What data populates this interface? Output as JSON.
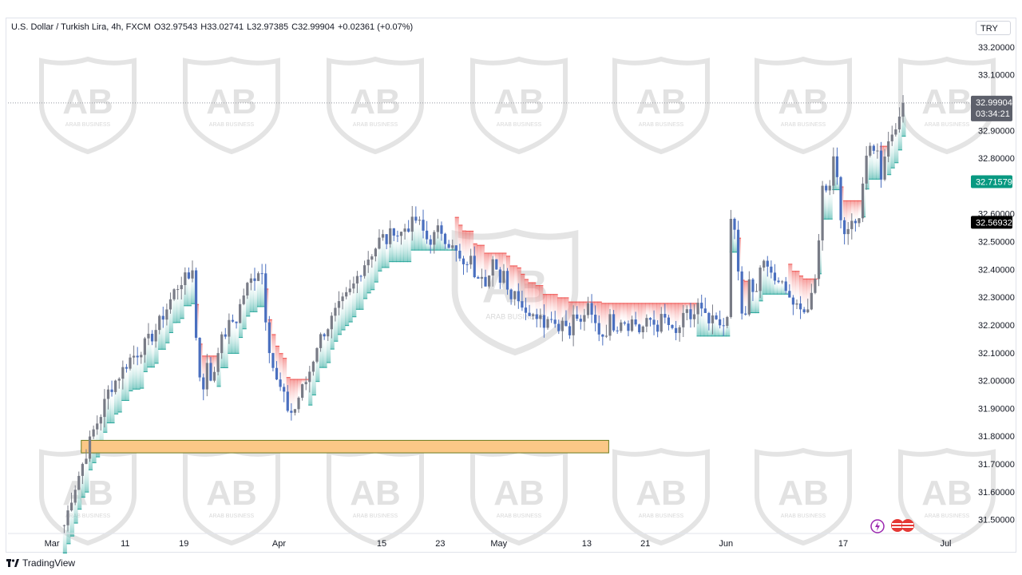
{
  "header": {
    "symbol": "U.S. Dollar / Turkish Lira, 4h, FXCM",
    "open_label": "O",
    "open": "32.97543",
    "high_label": "H",
    "high": "33.02741",
    "low_label": "L",
    "low": "32.97385",
    "close_label": "C",
    "close": "32.99904",
    "change": "+0.02361 (+0.07%)"
  },
  "currency": "TRY",
  "footer": {
    "brand": "TradingView"
  },
  "watermark": {
    "text": "ARAB BUSINESS"
  },
  "price_tags": {
    "last_price": "32.99904",
    "countdown": "03:34:21",
    "green_level": "32.71579",
    "black_level": "32.56932"
  },
  "colors": {
    "candle": "#4a6fbf",
    "candle_gray": "#787b86",
    "support_zone": "#fbc887",
    "support_border": "#6b7a1e",
    "trail_bull": "#26a69a",
    "trail_bear": "#ef5350",
    "tag_green": "#089981",
    "tag_black": "#000000",
    "tag_gray": "#5d606b"
  },
  "chart_data": {
    "type": "candlestick",
    "title": "U.S. Dollar / Turkish Lira, 4h, FXCM",
    "ylim": [
      31.45,
      33.24
    ],
    "y_ticks": [
      "33.20000",
      "33.10000",
      "32.90000",
      "32.80000",
      "32.60000",
      "32.50000",
      "32.40000",
      "32.30000",
      "32.20000",
      "32.10000",
      "32.00000",
      "31.90000",
      "31.80000",
      "31.70000",
      "31.60000",
      "31.50000"
    ],
    "x_ticks": [
      "Mar",
      "11",
      "19",
      "Apr",
      "15",
      "23",
      "May",
      "13",
      "21",
      "Jun",
      "17",
      "Jul"
    ],
    "x_tick_day": [
      0,
      10,
      18,
      31,
      45,
      53,
      61,
      73,
      81,
      92,
      108,
      122
    ],
    "x_range_days": [
      -6,
      125
    ],
    "support_zone": {
      "from_day": 4,
      "to_day": 76,
      "low": 31.74,
      "high": 31.785
    },
    "close_path": [
      {
        "d": 1.5,
        "v": 31.48
      },
      {
        "d": 2.5,
        "v": 31.58
      },
      {
        "d": 3.5,
        "v": 31.66
      },
      {
        "d": 4.5,
        "v": 31.74
      },
      {
        "d": 5.5,
        "v": 31.82
      },
      {
        "d": 6.5,
        "v": 31.88
      },
      {
        "d": 7.5,
        "v": 31.96
      },
      {
        "d": 8.5,
        "v": 32.0
      },
      {
        "d": 9.5,
        "v": 32.04
      },
      {
        "d": 10.5,
        "v": 32.08
      },
      {
        "d": 11.5,
        "v": 32.1
      },
      {
        "d": 12.5,
        "v": 32.13
      },
      {
        "d": 13.5,
        "v": 32.16
      },
      {
        "d": 14.5,
        "v": 32.21
      },
      {
        "d": 15.5,
        "v": 32.26
      },
      {
        "d": 16.5,
        "v": 32.32
      },
      {
        "d": 17.5,
        "v": 32.36
      },
      {
        "d": 18.5,
        "v": 32.37
      },
      {
        "d": 19.0,
        "v": 32.41
      },
      {
        "d": 19.6,
        "v": 32.1
      },
      {
        "d": 20.3,
        "v": 31.96
      },
      {
        "d": 21.0,
        "v": 32.05
      },
      {
        "d": 21.7,
        "v": 31.99
      },
      {
        "d": 22.5,
        "v": 32.12
      },
      {
        "d": 23.3,
        "v": 32.16
      },
      {
        "d": 24.2,
        "v": 32.21
      },
      {
        "d": 25.0,
        "v": 32.22
      },
      {
        "d": 25.8,
        "v": 32.3
      },
      {
        "d": 26.7,
        "v": 32.35
      },
      {
        "d": 27.6,
        "v": 32.38
      },
      {
        "d": 28.4,
        "v": 32.42
      },
      {
        "d": 29.0,
        "v": 32.23
      },
      {
        "d": 29.6,
        "v": 32.1
      },
      {
        "d": 30.4,
        "v": 32.0
      },
      {
        "d": 31.2,
        "v": 31.96
      },
      {
        "d": 32.0,
        "v": 31.9
      },
      {
        "d": 32.8,
        "v": 31.88
      },
      {
        "d": 33.6,
        "v": 31.95
      },
      {
        "d": 34.4,
        "v": 31.99
      },
      {
        "d": 35.2,
        "v": 32.05
      },
      {
        "d": 36.0,
        "v": 32.13
      },
      {
        "d": 36.8,
        "v": 32.17
      },
      {
        "d": 37.6,
        "v": 32.2
      },
      {
        "d": 38.4,
        "v": 32.24
      },
      {
        "d": 39.2,
        "v": 32.27
      },
      {
        "d": 40.0,
        "v": 32.3
      },
      {
        "d": 40.8,
        "v": 32.33
      },
      {
        "d": 41.6,
        "v": 32.38
      },
      {
        "d": 42.4,
        "v": 32.42
      },
      {
        "d": 43.2,
        "v": 32.45
      },
      {
        "d": 44.0,
        "v": 32.48
      },
      {
        "d": 44.8,
        "v": 32.52
      },
      {
        "d": 45.6,
        "v": 32.5
      },
      {
        "d": 46.4,
        "v": 32.55
      },
      {
        "d": 47.2,
        "v": 32.52
      },
      {
        "d": 48.0,
        "v": 32.55
      },
      {
        "d": 48.8,
        "v": 32.56
      },
      {
        "d": 49.6,
        "v": 32.58
      },
      {
        "d": 50.4,
        "v": 32.54
      },
      {
        "d": 51.2,
        "v": 32.5
      },
      {
        "d": 52.0,
        "v": 32.52
      },
      {
        "d": 52.8,
        "v": 32.55
      },
      {
        "d": 53.6,
        "v": 32.51
      },
      {
        "d": 54.4,
        "v": 32.48
      },
      {
        "d": 55.2,
        "v": 32.45
      },
      {
        "d": 56.0,
        "v": 32.4
      },
      {
        "d": 56.8,
        "v": 32.45
      },
      {
        "d": 57.6,
        "v": 32.38
      },
      {
        "d": 58.4,
        "v": 32.4
      },
      {
        "d": 59.2,
        "v": 32.35
      },
      {
        "d": 60.0,
        "v": 32.42
      },
      {
        "d": 60.8,
        "v": 32.36
      },
      {
        "d": 61.6,
        "v": 32.4
      },
      {
        "d": 62.4,
        "v": 32.3
      },
      {
        "d": 63.2,
        "v": 32.33
      },
      {
        "d": 64.0,
        "v": 32.27
      },
      {
        "d": 64.8,
        "v": 32.25
      },
      {
        "d": 65.6,
        "v": 32.22
      },
      {
        "d": 66.4,
        "v": 32.26
      },
      {
        "d": 67.2,
        "v": 32.2
      },
      {
        "d": 68.0,
        "v": 32.24
      },
      {
        "d": 68.8,
        "v": 32.19
      },
      {
        "d": 69.6,
        "v": 32.22
      },
      {
        "d": 70.4,
        "v": 32.18
      },
      {
        "d": 71.2,
        "v": 32.24
      },
      {
        "d": 72.0,
        "v": 32.2
      },
      {
        "d": 72.8,
        "v": 32.27
      },
      {
        "d": 73.6,
        "v": 32.22
      },
      {
        "d": 74.4,
        "v": 32.18
      },
      {
        "d": 75.2,
        "v": 32.16
      },
      {
        "d": 76.0,
        "v": 32.22
      },
      {
        "d": 76.8,
        "v": 32.19
      },
      {
        "d": 77.6,
        "v": 32.23
      },
      {
        "d": 78.4,
        "v": 32.2
      },
      {
        "d": 79.2,
        "v": 32.22
      },
      {
        "d": 80.0,
        "v": 32.18
      },
      {
        "d": 80.8,
        "v": 32.2
      },
      {
        "d": 81.6,
        "v": 32.22
      },
      {
        "d": 82.4,
        "v": 32.19
      },
      {
        "d": 83.2,
        "v": 32.23
      },
      {
        "d": 84.0,
        "v": 32.2
      },
      {
        "d": 84.8,
        "v": 32.15
      },
      {
        "d": 85.6,
        "v": 32.2
      },
      {
        "d": 86.4,
        "v": 32.24
      },
      {
        "d": 87.2,
        "v": 32.22
      },
      {
        "d": 88.0,
        "v": 32.27
      },
      {
        "d": 88.8,
        "v": 32.23
      },
      {
        "d": 89.6,
        "v": 32.2
      },
      {
        "d": 90.4,
        "v": 32.22
      },
      {
        "d": 91.2,
        "v": 32.17
      },
      {
        "d": 92.0,
        "v": 32.25
      },
      {
        "d": 92.6,
        "v": 32.62
      },
      {
        "d": 93.2,
        "v": 32.5
      },
      {
        "d": 93.8,
        "v": 32.27
      },
      {
        "d": 94.4,
        "v": 32.2
      },
      {
        "d": 95.0,
        "v": 32.35
      },
      {
        "d": 95.8,
        "v": 32.3
      },
      {
        "d": 96.6,
        "v": 32.4
      },
      {
        "d": 97.4,
        "v": 32.44
      },
      {
        "d": 98.2,
        "v": 32.38
      },
      {
        "d": 99.0,
        "v": 32.33
      },
      {
        "d": 99.8,
        "v": 32.36
      },
      {
        "d": 100.6,
        "v": 32.28
      },
      {
        "d": 101.4,
        "v": 32.3
      },
      {
        "d": 102.2,
        "v": 32.24
      },
      {
        "d": 103.0,
        "v": 32.28
      },
      {
        "d": 103.8,
        "v": 32.3
      },
      {
        "d": 104.6,
        "v": 32.56
      },
      {
        "d": 105.2,
        "v": 32.78
      },
      {
        "d": 105.8,
        "v": 32.62
      },
      {
        "d": 106.4,
        "v": 32.84
      },
      {
        "d": 107.0,
        "v": 32.72
      },
      {
        "d": 107.6,
        "v": 32.56
      },
      {
        "d": 108.2,
        "v": 32.48
      },
      {
        "d": 108.8,
        "v": 32.6
      },
      {
        "d": 109.4,
        "v": 32.54
      },
      {
        "d": 110.0,
        "v": 32.6
      },
      {
        "d": 110.6,
        "v": 32.74
      },
      {
        "d": 111.2,
        "v": 32.85
      },
      {
        "d": 111.8,
        "v": 32.8
      },
      {
        "d": 112.4,
        "v": 32.87
      },
      {
        "d": 113.0,
        "v": 32.74
      },
      {
        "d": 113.6,
        "v": 32.82
      },
      {
        "d": 114.2,
        "v": 32.9
      },
      {
        "d": 114.8,
        "v": 32.88
      },
      {
        "d": 115.4,
        "v": 32.95
      },
      {
        "d": 116.0,
        "v": 32.99904
      }
    ]
  }
}
